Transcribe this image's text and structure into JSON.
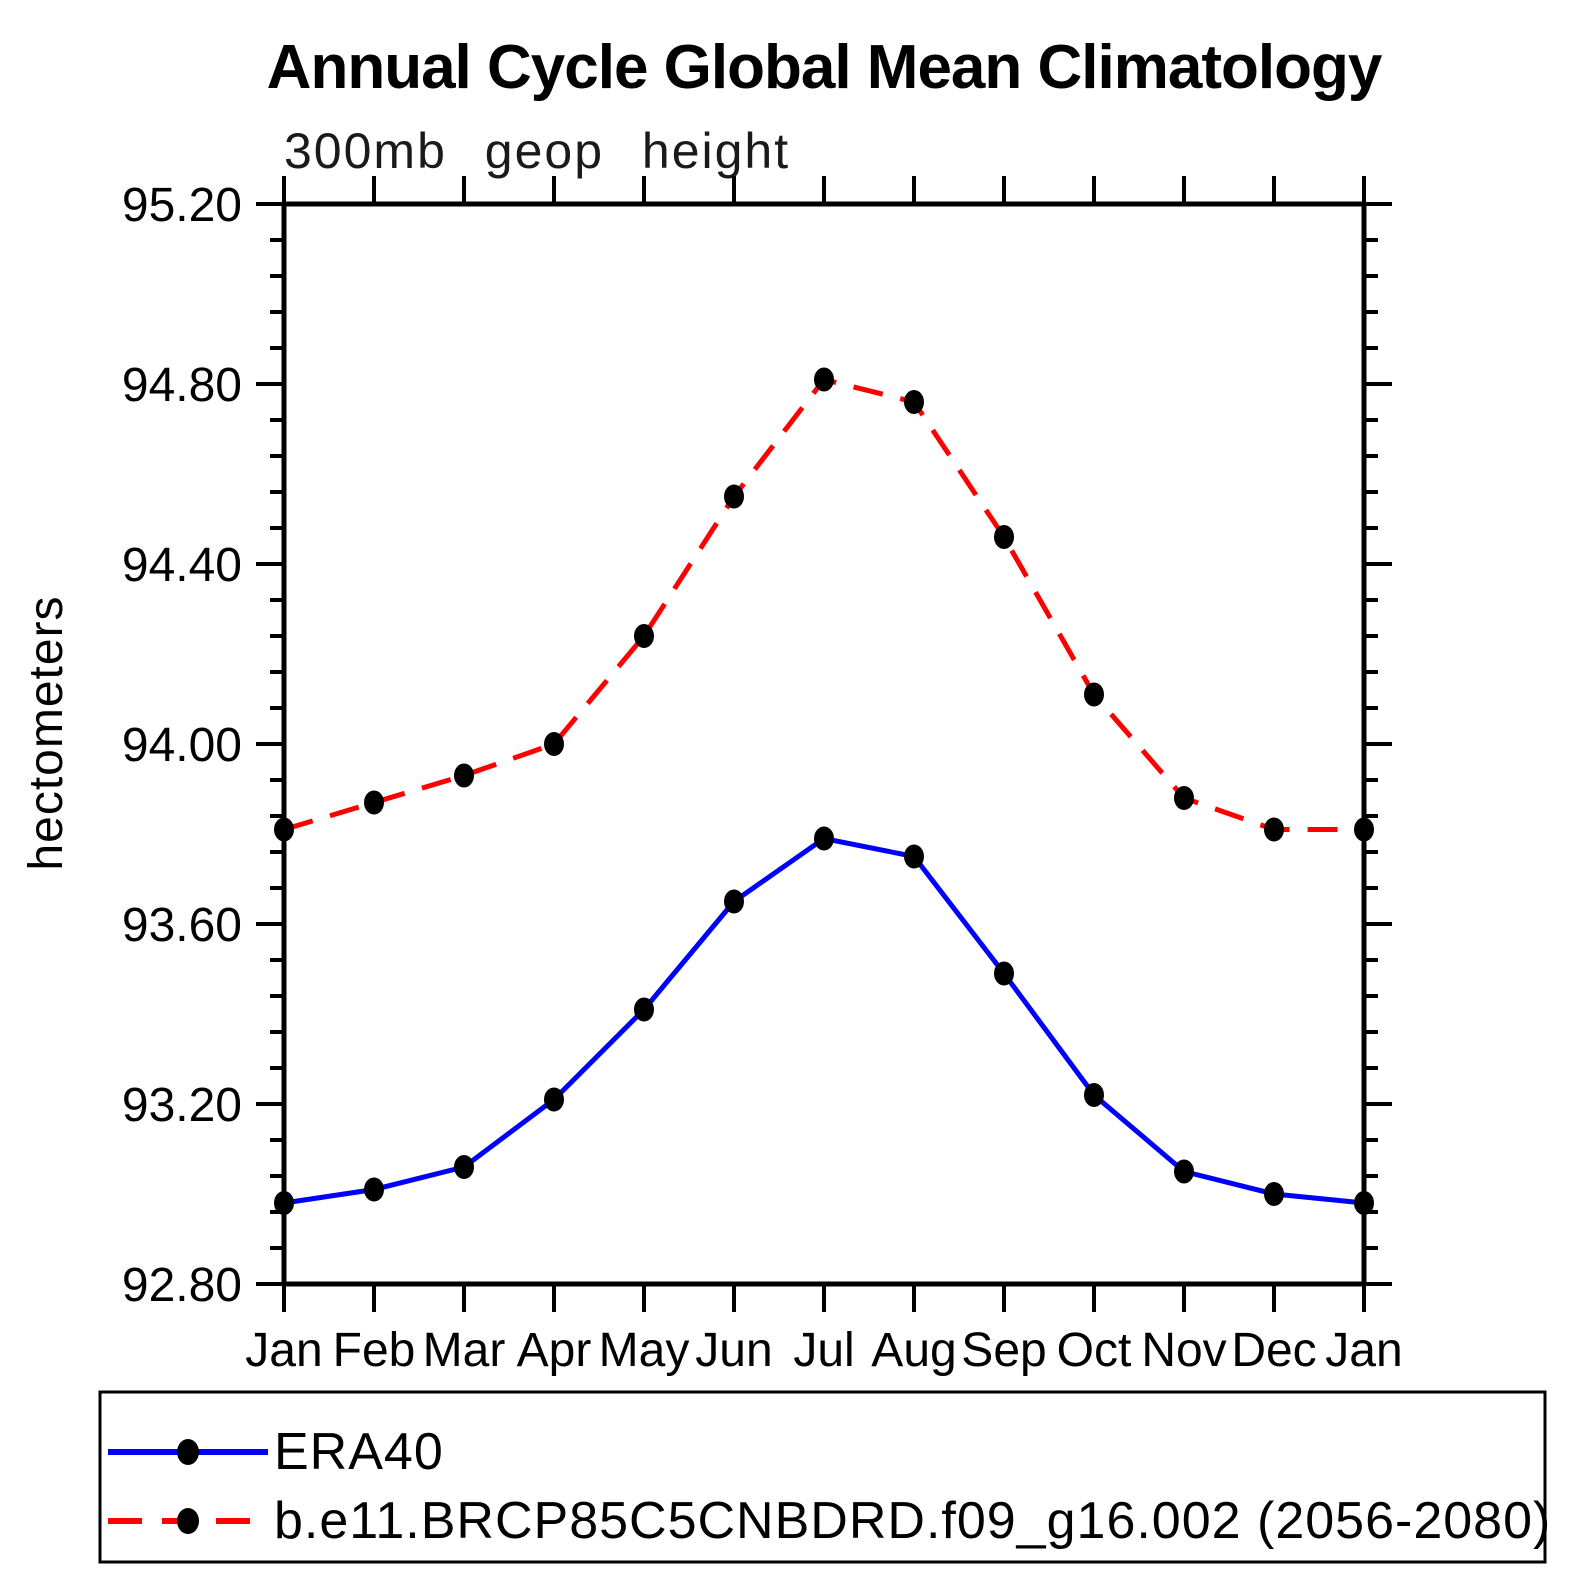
{
  "title": "Annual Cycle Global Mean Climatology",
  "subtitle": "300mb geop height",
  "chart_data": {
    "type": "line",
    "title": "Annual Cycle Global Mean Climatology",
    "subtitle": "300mb geop height",
    "xlabel": "",
    "ylabel": "hectometers",
    "categories": [
      "Jan",
      "Feb",
      "Mar",
      "Apr",
      "May",
      "Jun",
      "Jul",
      "Aug",
      "Sep",
      "Oct",
      "Nov",
      "Dec",
      "Jan"
    ],
    "ylim": [
      92.8,
      95.2
    ],
    "ytick_step": 0.4,
    "yminor_step": 0.08,
    "ytick_labels": [
      "92.80",
      "93.20",
      "93.60",
      "94.00",
      "94.40",
      "94.80",
      "95.20"
    ],
    "grid": false,
    "tick_style": "outward",
    "legend_position": "bottom-left-box",
    "series": [
      {
        "name": "ERA40",
        "color": "#0000ff",
        "line_style": "solid",
        "marker": "filled-circle",
        "marker_color": "#000000",
        "values": [
          92.98,
          93.01,
          93.06,
          93.21,
          93.41,
          93.65,
          93.79,
          93.75,
          93.49,
          93.22,
          93.05,
          93.0,
          92.98
        ]
      },
      {
        "name": "b.e11.BRCP85C5CNBDRD.f09_g16.002 (2056-2080)",
        "color": "#ff0000",
        "line_style": "dashed",
        "marker": "filled-circle",
        "marker_color": "#000000",
        "values": [
          93.81,
          93.87,
          93.93,
          94.0,
          94.24,
          94.55,
          94.81,
          94.76,
          94.46,
          94.11,
          93.88,
          93.81,
          93.81
        ]
      }
    ]
  },
  "colors": {
    "background": "#ffffff",
    "axis": "#000000",
    "text": "#000000",
    "era40_line": "#0000ff",
    "model_line": "#ff0000",
    "marker": "#000000"
  }
}
